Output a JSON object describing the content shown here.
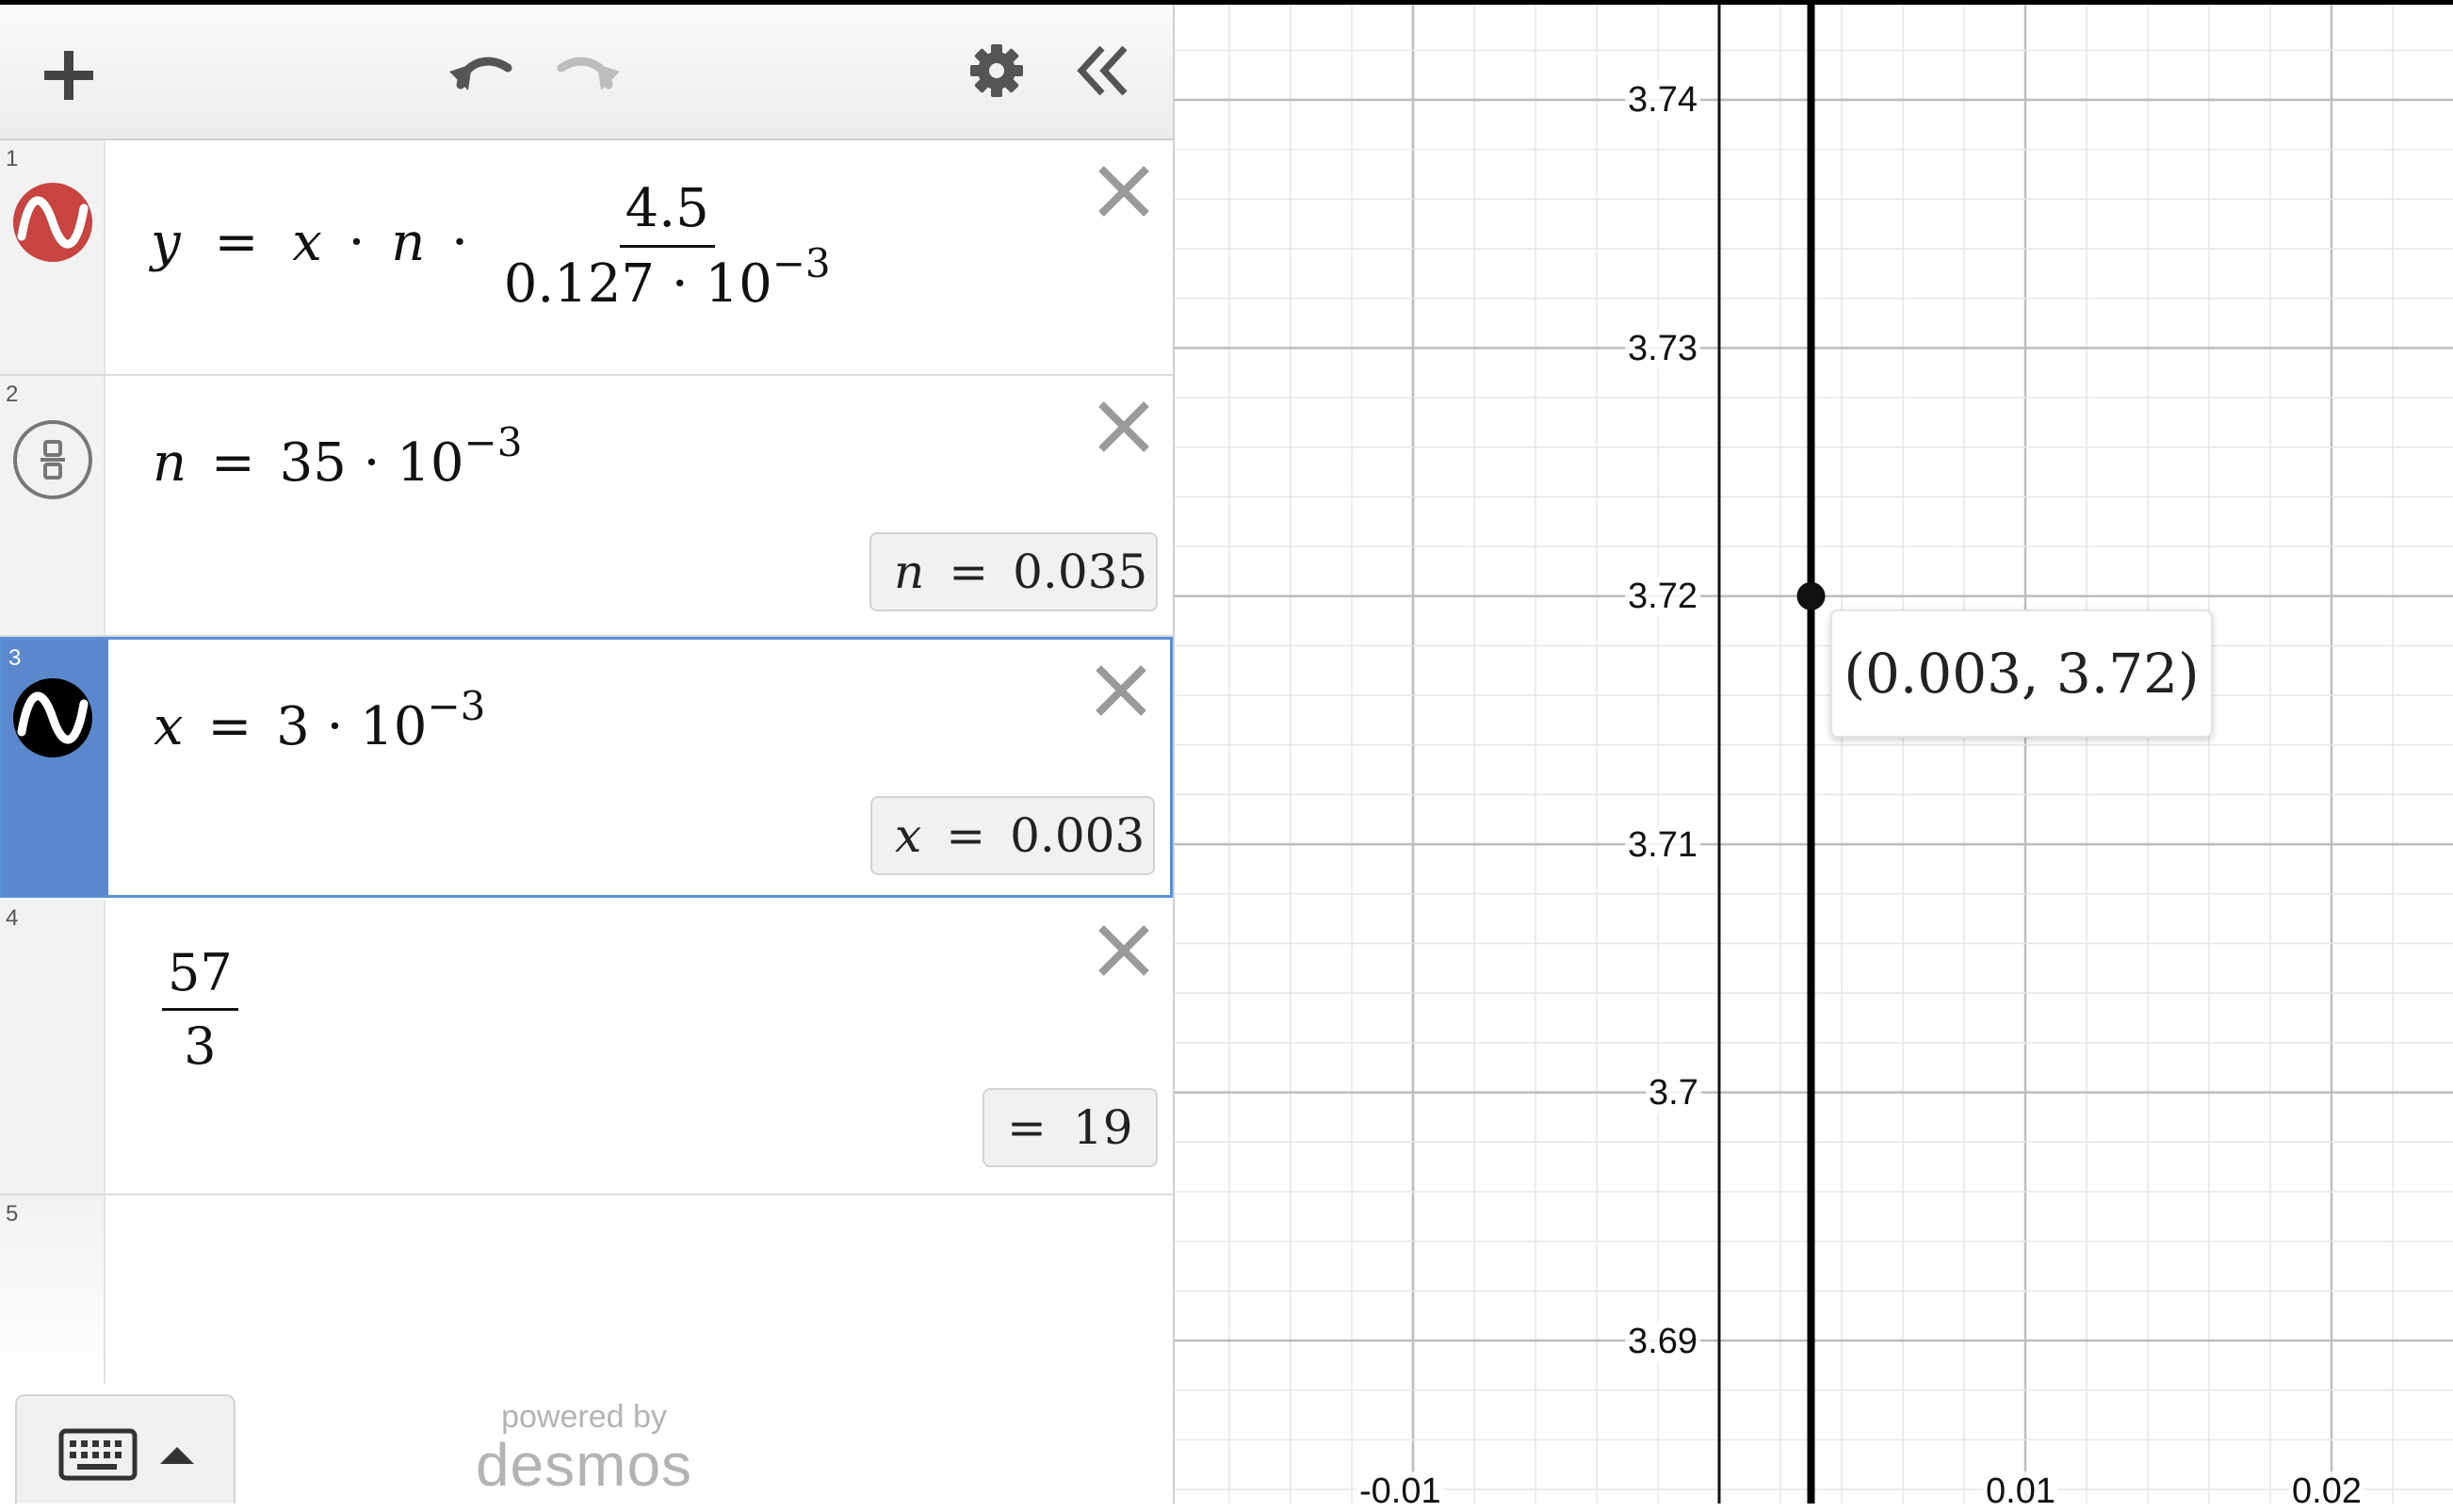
{
  "toolbar": {
    "add_icon": "plus-icon",
    "undo_icon": "undo-icon",
    "redo_icon": "redo-icon",
    "settings_icon": "gear-icon",
    "collapse_icon": "double-chevron-left-icon"
  },
  "expressions": [
    {
      "num": "1",
      "lhs": "y",
      "eq": "=",
      "x": "x",
      "dot": "·",
      "n": "n",
      "frac_num": "4.5",
      "frac_den_base": "0.127 · 10",
      "frac_den_exp": "−3",
      "icon_color": "#c74440"
    },
    {
      "num": "2",
      "lhs": "n",
      "eq": "=",
      "base": "35 · 10",
      "exp": "−3",
      "result_var": "n",
      "result_eq": "=",
      "result_val": "0.035"
    },
    {
      "num": "3",
      "lhs": "x",
      "eq": "=",
      "base": "3 · 10",
      "exp": "−3",
      "result_var": "x",
      "result_eq": "=",
      "result_val": "0.003",
      "icon_color": "#000000"
    },
    {
      "num": "4",
      "frac_num": "57",
      "frac_den": "3",
      "result_eq": "=",
      "result_val": "19"
    },
    {
      "num": "5"
    }
  ],
  "footer": {
    "keyboard_icon": "keyboard-icon",
    "expand_icon": "caret-up-icon",
    "powered_by": "powered by",
    "brand": "desmos"
  },
  "graph": {
    "y_ticks": [
      "3.74",
      "3.73",
      "3.72",
      "3.71",
      "3.7",
      "3.69"
    ],
    "x_ticks": [
      "-0.01",
      "0.01",
      "0.02"
    ],
    "point": {
      "x": 0.003,
      "y": 3.72
    },
    "point_label": "(0.003, 3.72)",
    "line_color": "#000000",
    "accent": "#5b88cc"
  }
}
